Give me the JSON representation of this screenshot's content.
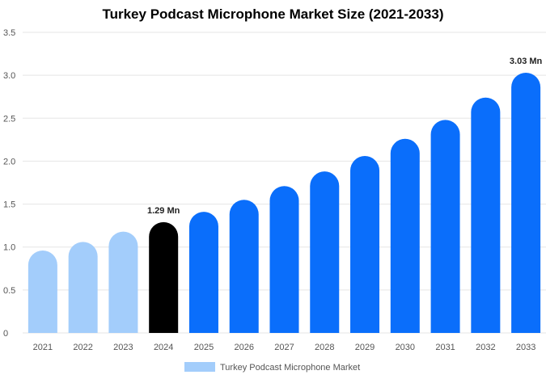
{
  "chart_data": {
    "type": "bar",
    "title": "Turkey Podcast Microphone Market Size (2021-2033)",
    "categories": [
      "2021",
      "2022",
      "2023",
      "2024",
      "2025",
      "2026",
      "2027",
      "2028",
      "2029",
      "2030",
      "2031",
      "2032",
      "2033"
    ],
    "series": [
      {
        "name": "Turkey Podcast Microphone Market",
        "values": [
          0.96,
          1.06,
          1.18,
          1.29,
          1.41,
          1.55,
          1.71,
          1.88,
          2.06,
          2.26,
          2.48,
          2.74,
          3.03
        ]
      }
    ],
    "data_labels": [
      {
        "category": "2024",
        "text": "1.29 Mn"
      },
      {
        "category": "2033",
        "text": "3.03 Mn"
      }
    ],
    "ylim": [
      0,
      3.5
    ],
    "yticks": [
      "0",
      "0.5",
      "1.0",
      "1.5",
      "2.0",
      "2.5",
      "3.0",
      "3.5"
    ],
    "grid": true,
    "legend": "bottom",
    "colors": {
      "historical": "#a3cdfb",
      "base_year": "#000000",
      "forecast": "#0a6efb",
      "legend_swatch": "#a3cdfb",
      "grid": "#e5e5e5"
    },
    "highlight": {
      "historical_until": "2023",
      "base_year": "2024"
    }
  }
}
